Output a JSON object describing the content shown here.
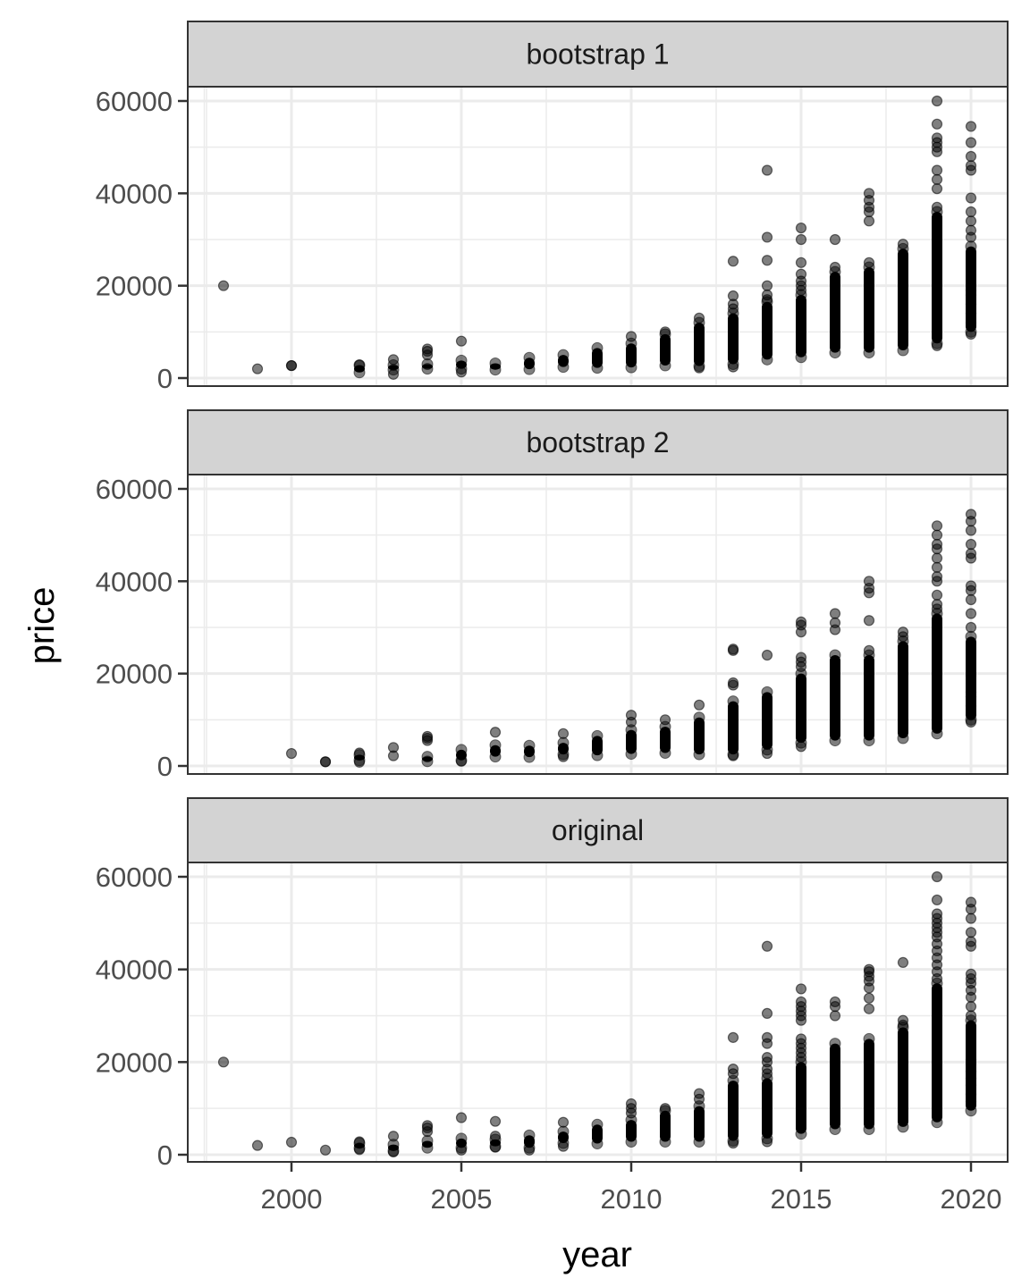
{
  "chart_data": {
    "type": "scatter",
    "title": "",
    "xlabel": "year",
    "ylabel": "price",
    "xlim": [
      1997,
      2021
    ],
    "ylim": [
      0,
      60000
    ],
    "x_ticks": [
      2000,
      2005,
      2010,
      2015,
      2020
    ],
    "x_tick_labels": [
      "2000",
      "2005",
      "2010",
      "2015",
      "2020"
    ],
    "y_ticks": [
      0,
      20000,
      40000,
      60000
    ],
    "y_tick_labels": [
      "0",
      "20000",
      "40000",
      "60000"
    ],
    "grid": true,
    "facet_strip_color": "#d3d3d3",
    "point_color": "#000000",
    "point_alpha": 0.5,
    "panels": [
      {
        "label": "bootstrap 1",
        "columns": [
          {
            "year": 1998,
            "dense": null,
            "points": [
              20000
            ]
          },
          {
            "year": 1999,
            "dense": null,
            "points": [
              2000
            ]
          },
          {
            "year": 2000,
            "dense": null,
            "points": [
              2700,
              2700
            ]
          },
          {
            "year": 2002,
            "dense": [
              1200,
              2800
            ],
            "points": [
              2800
            ]
          },
          {
            "year": 2003,
            "dense": [
              1800,
              2800
            ],
            "points": [
              800,
              4000
            ]
          },
          {
            "year": 2004,
            "dense": [
              2000,
              3000
            ],
            "points": [
              5000,
              5800,
              6300
            ]
          },
          {
            "year": 2005,
            "dense": [
              2000,
              3800
            ],
            "points": [
              1300,
              8000
            ]
          },
          {
            "year": 2006,
            "dense": [
              1800,
              3200
            ],
            "points": []
          },
          {
            "year": 2007,
            "dense": [
              1900,
              4400
            ],
            "points": []
          },
          {
            "year": 2008,
            "dense": [
              2400,
              5000
            ],
            "points": []
          },
          {
            "year": 2009,
            "dense": [
              2200,
              6500
            ],
            "points": []
          },
          {
            "year": 2010,
            "dense": [
              2300,
              7500
            ],
            "points": [
              9000
            ]
          },
          {
            "year": 2011,
            "dense": [
              2700,
              9500
            ],
            "points": [
              10000
            ]
          },
          {
            "year": 2012,
            "dense": [
              2600,
              12000
            ],
            "points": [
              13000,
              2200
            ]
          },
          {
            "year": 2013,
            "dense": [
              3000,
              14000
            ],
            "points": [
              2400,
              15000,
              16000,
              17800,
              25300
            ]
          },
          {
            "year": 2014,
            "dense": [
              4000,
              16500
            ],
            "points": [
              17000,
              18000,
              20000,
              25500,
              30500,
              45000
            ]
          },
          {
            "year": 2015,
            "dense": [
              4500,
              18000
            ],
            "points": [
              19000,
              20000,
              21000,
              22500,
              25000,
              30000,
              32500
            ]
          },
          {
            "year": 2016,
            "dense": [
              5500,
              23000
            ],
            "points": [
              24000,
              30000
            ]
          },
          {
            "year": 2017,
            "dense": [
              5500,
              24000
            ],
            "points": [
              25000,
              34000,
              36000,
              37000,
              38500,
              40000
            ]
          },
          {
            "year": 2018,
            "dense": [
              6000,
              28000
            ],
            "points": [
              29000
            ]
          },
          {
            "year": 2019,
            "dense": [
              7500,
              36000
            ],
            "points": [
              7000,
              37000,
              41000,
              43000,
              45000,
              49000,
              50000,
              51000,
              52000,
              55000,
              60000
            ]
          },
          {
            "year": 2020,
            "dense": [
              10000,
              28500
            ],
            "points": [
              9500,
              12000,
              14000,
              16000,
              18000,
              19000,
              30500,
              32000,
              34000,
              36000,
              39000,
              45000,
              46000,
              48000,
              51000,
              54500
            ]
          }
        ]
      },
      {
        "label": "bootstrap 2",
        "columns": [
          {
            "year": 2000,
            "dense": null,
            "points": [
              2700
            ]
          },
          {
            "year": 2001,
            "dense": null,
            "points": [
              900,
              900
            ]
          },
          {
            "year": 2002,
            "dense": [
              1200,
              2400
            ],
            "points": [
              800,
              2800
            ]
          },
          {
            "year": 2003,
            "dense": null,
            "points": [
              2200,
              4000
            ]
          },
          {
            "year": 2004,
            "dense": [
              1000,
              2000
            ],
            "points": [
              5500,
              6000,
              6400
            ]
          },
          {
            "year": 2005,
            "dense": [
              1200,
              3500
            ],
            "points": [
              1000
            ]
          },
          {
            "year": 2006,
            "dense": [
              2000,
              4500
            ],
            "points": [
              7300
            ]
          },
          {
            "year": 2007,
            "dense": [
              1900,
              4400
            ],
            "points": []
          },
          {
            "year": 2008,
            "dense": [
              2500,
              5000
            ],
            "points": [
              2000,
              7000
            ]
          },
          {
            "year": 2009,
            "dense": [
              2300,
              6500
            ],
            "points": []
          },
          {
            "year": 2010,
            "dense": [
              2600,
              7800
            ],
            "points": [
              9500,
              11000
            ]
          },
          {
            "year": 2011,
            "dense": [
              2800,
              8500
            ],
            "points": [
              10000
            ]
          },
          {
            "year": 2012,
            "dense": [
              2500,
              10500
            ],
            "points": [
              13200
            ]
          },
          {
            "year": 2013,
            "dense": [
              2500,
              14000
            ],
            "points": [
              2200,
              17500,
              18000,
              25000,
              25300
            ]
          },
          {
            "year": 2014,
            "dense": [
              3500,
              16000
            ],
            "points": [
              2700,
              24000
            ]
          },
          {
            "year": 2015,
            "dense": [
              5000,
              20000
            ],
            "points": [
              4200,
              21500,
              22500,
              23500,
              29000,
              30500,
              31200
            ]
          },
          {
            "year": 2016,
            "dense": [
              5500,
              24000
            ],
            "points": [
              29500,
              31000,
              33000
            ]
          },
          {
            "year": 2017,
            "dense": [
              5500,
              24000
            ],
            "points": [
              25000,
              31500,
              37500,
              38500,
              40000
            ]
          },
          {
            "year": 2018,
            "dense": [
              6000,
              27000
            ],
            "points": [
              28000,
              29000
            ]
          },
          {
            "year": 2019,
            "dense": [
              7000,
              33000
            ],
            "points": [
              34000,
              35000,
              37000,
              40000,
              41000,
              43000,
              45000,
              47000,
              48000,
              50000,
              52000
            ]
          },
          {
            "year": 2020,
            "dense": [
              10000,
              28000
            ],
            "points": [
              9500,
              11000,
              13000,
              15000,
              16000,
              19500,
              30000,
              33000,
              36000,
              38000,
              39000,
              45000,
              46000,
              48000,
              51000,
              53000,
              54500
            ]
          }
        ]
      },
      {
        "label": "original",
        "columns": [
          {
            "year": 1998,
            "dense": null,
            "points": [
              20000
            ]
          },
          {
            "year": 1999,
            "dense": null,
            "points": [
              2000
            ]
          },
          {
            "year": 2000,
            "dense": null,
            "points": [
              2700
            ]
          },
          {
            "year": 2001,
            "dense": null,
            "points": [
              1000
            ]
          },
          {
            "year": 2002,
            "dense": [
              1400,
              2500
            ],
            "points": [
              1100,
              2800
            ]
          },
          {
            "year": 2003,
            "dense": [
              800,
              2200
            ],
            "points": [
              600,
              4000
            ]
          },
          {
            "year": 2004,
            "dense": [
              1500,
              3000
            ],
            "points": [
              5000,
              5800,
              6300
            ]
          },
          {
            "year": 2005,
            "dense": [
              1500,
              3500
            ],
            "points": [
              1000,
              8000
            ]
          },
          {
            "year": 2006,
            "dense": [
              1800,
              3300
            ],
            "points": [
              1600,
              4000,
              7200
            ]
          },
          {
            "year": 2007,
            "dense": [
              1500,
              4200
            ],
            "points": [
              1000
            ]
          },
          {
            "year": 2008,
            "dense": [
              2500,
              5000
            ],
            "points": [
              1800,
              7000
            ]
          },
          {
            "year": 2009,
            "dense": [
              2400,
              6500
            ],
            "points": []
          },
          {
            "year": 2010,
            "dense": [
              2800,
              7500
            ],
            "points": [
              9000,
              10000,
              11000
            ]
          },
          {
            "year": 2011,
            "dense": [
              2800,
              9500
            ],
            "points": [
              10000
            ]
          },
          {
            "year": 2012,
            "dense": [
              2800,
              10500
            ],
            "points": [
              12000,
              13200
            ]
          },
          {
            "year": 2013,
            "dense": [
              3000,
              16000
            ],
            "points": [
              2500,
              17500,
              18500,
              25300
            ]
          },
          {
            "year": 2014,
            "dense": [
              3500,
              16500
            ],
            "points": [
              2800,
              17500,
              18500,
              20000,
              21000,
              24000,
              25300,
              30500,
              45000
            ]
          },
          {
            "year": 2015,
            "dense": [
              4500,
              20000
            ],
            "points": [
              21000,
              22000,
              23000,
              24000,
              25000,
              29000,
              30000,
              31000,
              32000,
              33000,
              35800
            ]
          },
          {
            "year": 2016,
            "dense": [
              5500,
              24000
            ],
            "points": [
              30000,
              32000,
              33000
            ]
          },
          {
            "year": 2017,
            "dense": [
              5500,
              25000
            ],
            "points": [
              31500,
              33800,
              36000,
              37500,
              38500,
              39500,
              40000
            ]
          },
          {
            "year": 2018,
            "dense": [
              6000,
              27500
            ],
            "points": [
              28000,
              29000,
              41500
            ]
          },
          {
            "year": 2019,
            "dense": [
              7000,
              37000
            ],
            "points": [
              38000,
              39500,
              41000,
              42500,
              44000,
              45500,
              47000,
              48000,
              49000,
              50000,
              51000,
              52000,
              55000,
              60000
            ]
          },
          {
            "year": 2020,
            "dense": [
              9500,
              29000
            ],
            "points": [
              11500,
              13000,
              15000,
              16500,
              18000,
              19500,
              20500,
              30000,
              32000,
              34000,
              35500,
              37000,
              38000,
              39000,
              45000,
              46000,
              48000,
              51000,
              53000,
              54500
            ]
          }
        ]
      }
    ]
  }
}
